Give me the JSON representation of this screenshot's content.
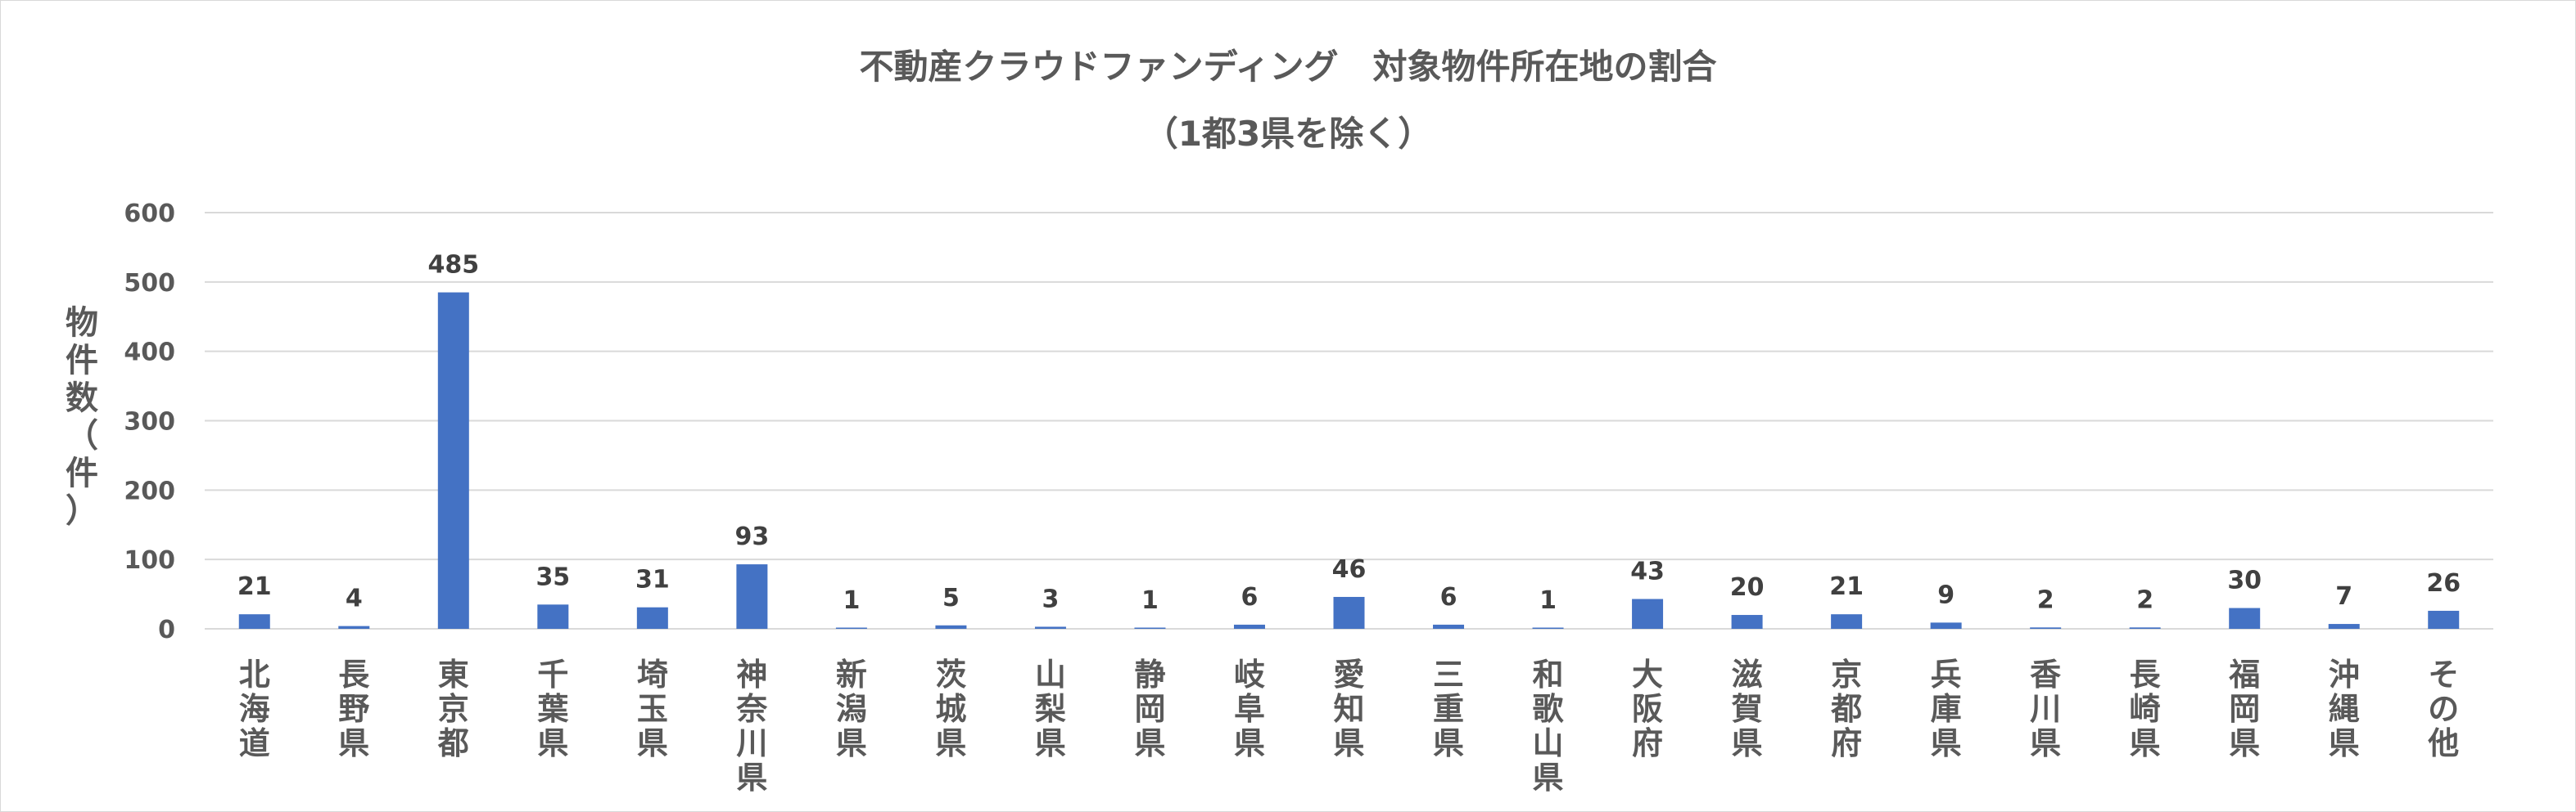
{
  "chart_data": {
    "type": "bar",
    "title": "不動産クラウドファンディング　対象物件所在地の割合",
    "subtitle": "（1都3県を除く）",
    "ylabel": "物件数（件）",
    "xlabel": "",
    "ylim": [
      0,
      600
    ],
    "yticks": [
      0,
      100,
      200,
      300,
      400,
      500,
      600
    ],
    "grid": true,
    "bar_color": "#4472c4",
    "categories": [
      "北海道",
      "長野県",
      "東京都",
      "千葉県",
      "埼玉県",
      "神奈川県",
      "新潟県",
      "茨城県",
      "山梨県",
      "静岡県",
      "岐阜県",
      "愛知県",
      "三重県",
      "和歌山県",
      "大阪府",
      "滋賀県",
      "京都府",
      "兵庫県",
      "香川県",
      "長崎県",
      "福岡県",
      "沖縄県",
      "その他"
    ],
    "values": [
      21,
      4,
      485,
      35,
      31,
      93,
      1,
      5,
      3,
      1,
      6,
      46,
      6,
      1,
      43,
      20,
      21,
      9,
      2,
      2,
      30,
      7,
      26
    ]
  }
}
